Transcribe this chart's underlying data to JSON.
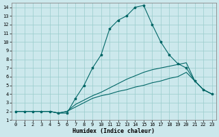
{
  "xlabel": "Humidex (Indice chaleur)",
  "bg_color": "#cce8ec",
  "grid_color": "#99cccc",
  "line_color": "#006666",
  "xlim": [
    -0.5,
    23.5
  ],
  "ylim": [
    1,
    14.5
  ],
  "xticks": [
    0,
    1,
    2,
    3,
    4,
    5,
    6,
    7,
    8,
    9,
    10,
    11,
    12,
    13,
    14,
    15,
    16,
    17,
    18,
    19,
    20,
    21,
    22,
    23
  ],
  "yticks": [
    1,
    2,
    3,
    4,
    5,
    6,
    7,
    8,
    9,
    10,
    11,
    12,
    13,
    14
  ],
  "line1_x": [
    0,
    1,
    2,
    3,
    4,
    5,
    6,
    7,
    8,
    9,
    10,
    11,
    12,
    13,
    14,
    15,
    16,
    17,
    18,
    19,
    20,
    21,
    22,
    23
  ],
  "line1_y": [
    2,
    2,
    2,
    2,
    2,
    1.8,
    1.8,
    3.5,
    5,
    7,
    8.5,
    11.5,
    12.5,
    13,
    14,
    14.2,
    12,
    10,
    8.5,
    7.5,
    7,
    5.5,
    4.5,
    4
  ],
  "line2_x": [
    0,
    1,
    2,
    3,
    4,
    5,
    6,
    7,
    8,
    9,
    10,
    11,
    12,
    13,
    14,
    15,
    16,
    17,
    18,
    19,
    20,
    21,
    22,
    23
  ],
  "line2_y": [
    2,
    2,
    2,
    2,
    2,
    1.8,
    2,
    2.5,
    3,
    3.5,
    3.8,
    4,
    4.3,
    4.5,
    4.8,
    5,
    5.3,
    5.5,
    5.8,
    6,
    6.5,
    5.5,
    4.5,
    4
  ],
  "line3_x": [
    0,
    1,
    2,
    3,
    4,
    5,
    6,
    7,
    8,
    9,
    10,
    11,
    12,
    13,
    14,
    15,
    16,
    17,
    18,
    19,
    20,
    21,
    22,
    23
  ],
  "line3_y": [
    2,
    2,
    2,
    2,
    2,
    1.8,
    2,
    2.8,
    3.3,
    3.8,
    4.2,
    4.7,
    5.2,
    5.7,
    6.1,
    6.5,
    6.8,
    7,
    7.2,
    7.4,
    7.6,
    5.5,
    4.5,
    4
  ],
  "marker_style": "*",
  "marker_size": 2.5,
  "line_width": 0.8,
  "tick_fontsize": 5,
  "xlabel_fontsize": 6
}
